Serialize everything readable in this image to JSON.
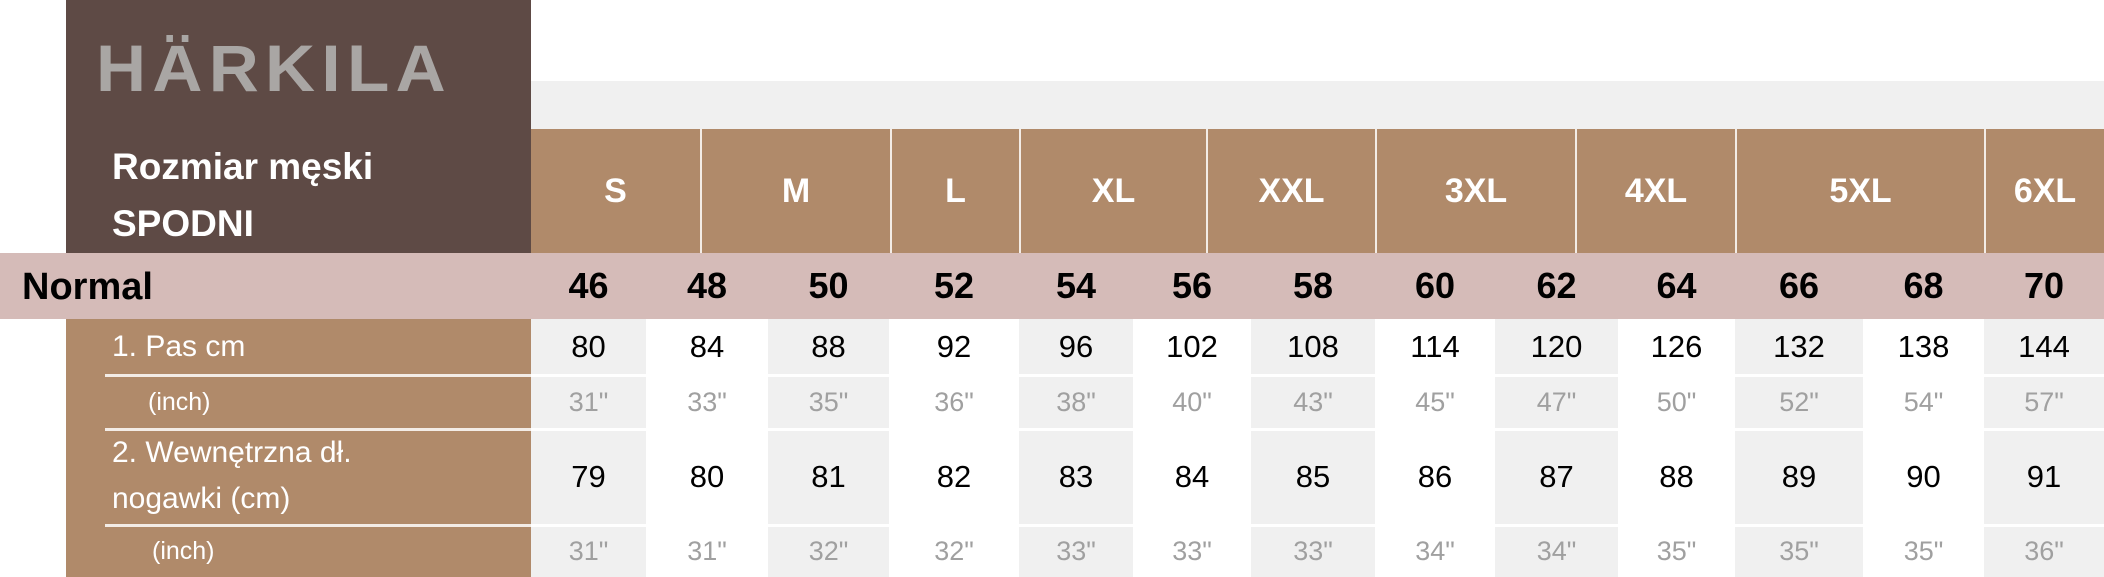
{
  "brand": {
    "logo_text": "HÄRKILA"
  },
  "title": {
    "line1": "Rozmiar męski",
    "line2": "SPODNI"
  },
  "colors": {
    "brand_box": "#5e4a45",
    "header": "#b08a6a",
    "fit_row": "#d5bbb8",
    "stripe": "#f0f0f0",
    "inch_text": "#a0a0a0"
  },
  "size_groups": [
    "S",
    "M",
    "L",
    "XL",
    "XXL",
    "3XL",
    "4XL",
    "5XL",
    "6XL"
  ],
  "fit": {
    "label": "Normal",
    "sizes": [
      "46",
      "48",
      "50",
      "52",
      "54",
      "56",
      "58",
      "60",
      "62",
      "64",
      "66",
      "68",
      "70"
    ]
  },
  "rows": [
    {
      "label": "1. Pas  cm",
      "values": [
        "80",
        "84",
        "88",
        "92",
        "96",
        "102",
        "108",
        "114",
        "120",
        "126",
        "132",
        "138",
        "144"
      ]
    },
    {
      "label": "(inch)",
      "values": [
        "31\"",
        "33\"",
        "35\"",
        "36\"",
        "38\"",
        "40\"",
        "43\"",
        "45\"",
        "47\"",
        "50\"",
        "52\"",
        "54\"",
        "57\""
      ]
    },
    {
      "label_line1": "2. Wewnętrzna dł.",
      "label_line2": "nogawki  (cm)",
      "values": [
        "79",
        "80",
        "81",
        "82",
        "83",
        "84",
        "85",
        "86",
        "87",
        "88",
        "89",
        "90",
        "91"
      ]
    },
    {
      "label": "(inch)",
      "values": [
        "31\"",
        "31\"",
        "32\"",
        "32\"",
        "33\"",
        "33\"",
        "33\"",
        "34\"",
        "34\"",
        "35\"",
        "35\"",
        "35\"",
        "36\""
      ]
    }
  ]
}
